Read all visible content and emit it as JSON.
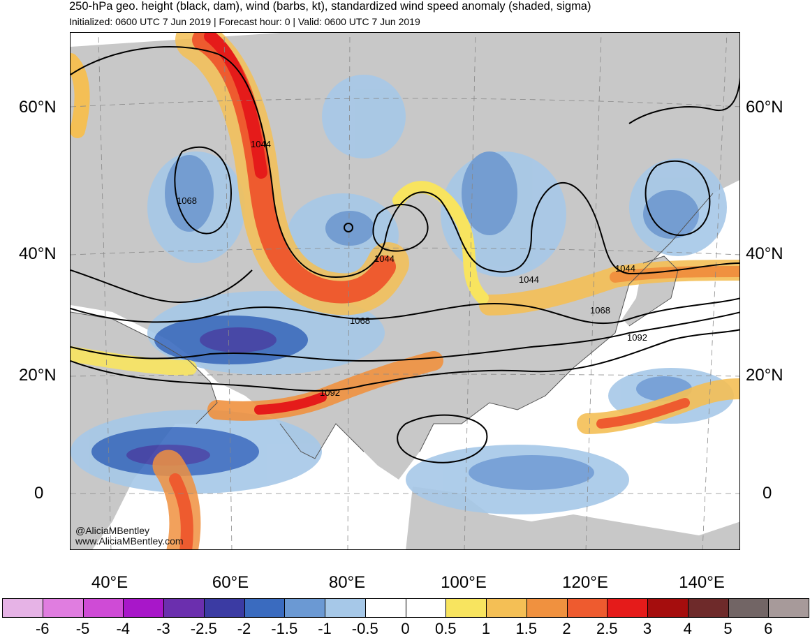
{
  "header": {
    "title": "250-hPa geo. height (black, dam), wind (barbs, kt), standardized wind speed anomaly (shaded, sigma)",
    "subtitle": "Initialized: 0600 UTC 7 Jun 2019 | Forecast hour: 0 | Valid: 0600 UTC 7 Jun 2019"
  },
  "map": {
    "lat_labels": [
      "60°N",
      "40°N",
      "20°N",
      "0"
    ],
    "lon_labels": [
      "40°E",
      "60°E",
      "80°E",
      "100°E",
      "120°E",
      "140°E"
    ],
    "contour_labels": [
      "1044",
      "1068",
      "1044",
      "1044",
      "1044",
      "1068",
      "1068",
      "1092",
      "1092"
    ],
    "watermark": [
      "@AliciaMBentley",
      "www.AliciaMBentley.com"
    ]
  },
  "colorbar": {
    "labels": [
      "-6",
      "-5",
      "-4",
      "-3",
      "-2.5",
      "-2",
      "-1.5",
      "-1",
      "-0.5",
      "0",
      "0.5",
      "1",
      "1.5",
      "2",
      "2.5",
      "3",
      "4",
      "5",
      "6"
    ],
    "colors": [
      "#e6b3e6",
      "#e07de0",
      "#cf4bd6",
      "#a817c9",
      "#6b2fae",
      "#3b3ba3",
      "#3a6bbf",
      "#6b99d3",
      "#a6c8e8",
      "#ffffff",
      "#ffffff",
      "#f8e45f",
      "#f4bf55",
      "#f0913f",
      "#ee5b2f",
      "#e51b1a",
      "#a50d0d",
      "#6e2a2a",
      "#726565",
      "#a79a9a"
    ]
  },
  "colors": {
    "land": "#c8c8c8",
    "ocean": "#ffffff",
    "contour": "#000000",
    "coast": "#555555"
  }
}
